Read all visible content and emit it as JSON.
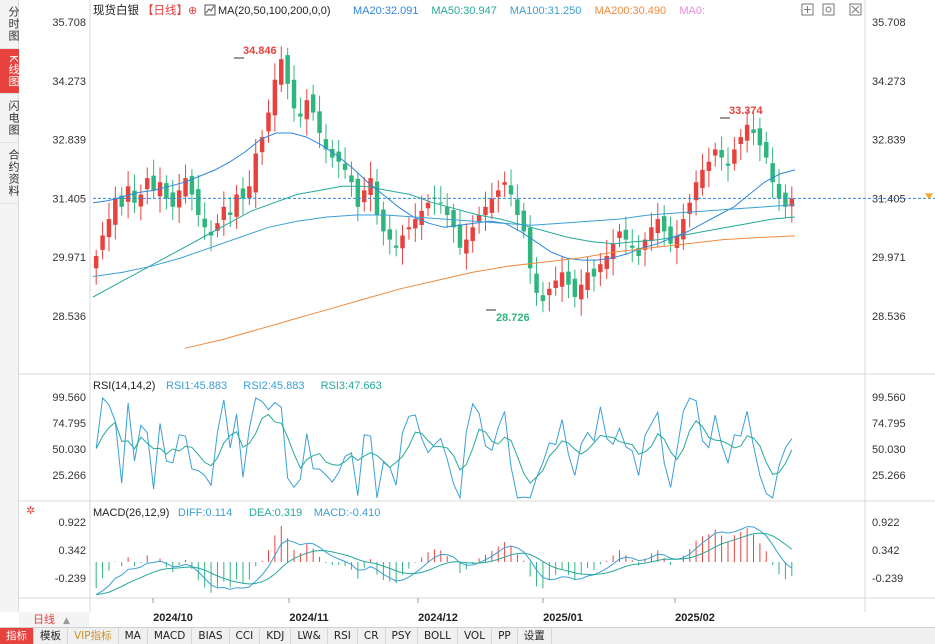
{
  "side_tabs": [
    "分时图",
    "K线图",
    "闪电图",
    "合约资料"
  ],
  "active_side_tab": 1,
  "title": "现货白银",
  "period_label": "【日线】",
  "ma_params": "MA(20,50,100,200,0,0)",
  "ma_legend": [
    {
      "label": "MA20:32.091",
      "color": "#2e86de"
    },
    {
      "label": "MA50:30.947",
      "color": "#26a99a"
    },
    {
      "label": "MA100:31.250",
      "color": "#3aa0d8"
    },
    {
      "label": "MA200:30.490",
      "color": "#f08a3c"
    },
    {
      "label": "MA0:",
      "color": "#e98ad8"
    }
  ],
  "price_axis": {
    "ticks": [
      "35.708",
      "34.273",
      "32.839",
      "31.405",
      "29.971",
      "28.536"
    ]
  },
  "last_price": "31.405",
  "high_label": "34.846",
  "high_label2": "33.374",
  "low_label": "28.726",
  "rsi": {
    "title": "RSI(14,14,2)",
    "legend": [
      {
        "label": "RSI1:45.883",
        "color": "#3aa0d8"
      },
      {
        "label": "RSI2:45.883",
        "color": "#3aa0d8"
      },
      {
        "label": "RSI3:47.663",
        "color": "#26a99a"
      }
    ],
    "ticks": [
      "99.560",
      "74.795",
      "50.030",
      "25.266"
    ]
  },
  "macd": {
    "title": "MACD(26,12,9)",
    "legend": [
      {
        "label": "DIFF:0.114",
        "color": "#3aa0d8"
      },
      {
        "label": "DEA:0.319",
        "color": "#26a99a"
      },
      {
        "label": "MACD:-0.410",
        "color": "#3aa0d8"
      }
    ],
    "ticks": [
      "0.922",
      "0.342",
      "-0.239"
    ]
  },
  "x_axis": [
    "2024/10",
    "2024/11",
    "2024/12",
    "2025/01",
    "2025/02"
  ],
  "period_selector": "日线",
  "bottom_tabs": [
    "指标",
    "模板",
    "VIP指标",
    "MA",
    "MACD",
    "BIAS",
    "CCI",
    "KDJ",
    "LW&",
    "RSI",
    "CR",
    "PSY",
    "BOLL",
    "VOL",
    "PP",
    "设置"
  ],
  "colors": {
    "up": "#e8423f",
    "down": "#2fb57e",
    "ma20": "#2e86de",
    "ma50": "#26a99a",
    "ma100": "#3aa0d8",
    "ma200": "#f08a3c",
    "last_line": "#2e86de",
    "last_marker": "#f5a623"
  },
  "chart_data": {
    "type": "candlestick",
    "y_range": [
      28.536,
      35.708
    ],
    "ohlc_closes": [
      30.0,
      30.5,
      30.9,
      31.4,
      31.2,
      31.7,
      31.3,
      31.5,
      31.9,
      31.6,
      31.8,
      31.4,
      31.2,
      31.6,
      31.9,
      31.5,
      31.0,
      30.7,
      30.5,
      30.8,
      31.2,
      31.0,
      31.5,
      31.4,
      31.7,
      32.5,
      32.9,
      33.5,
      34.3,
      34.8,
      34.2,
      33.6,
      33.4,
      33.8,
      33.5,
      33.0,
      32.6,
      32.4,
      32.3,
      32.1,
      31.8,
      31.2,
      31.6,
      31.9,
      31.0,
      30.6,
      30.4,
      30.2,
      30.5,
      30.7,
      30.9,
      31.1,
      31.3,
      31.4,
      31.3,
      31.0,
      30.7,
      30.2,
      30.4,
      30.7,
      31.0,
      31.2,
      31.4,
      31.6,
      31.8,
      31.5,
      31.0,
      30.6,
      29.7,
      29.1,
      28.9,
      29.2,
      29.4,
      29.6,
      29.3,
      29.0,
      29.3,
      29.6,
      29.5,
      29.8,
      30.0,
      30.3,
      30.6,
      30.4,
      30.2,
      30.0,
      30.4,
      30.7,
      30.9,
      30.6,
      30.3,
      30.5,
      30.9,
      31.3,
      31.8,
      32.1,
      32.3,
      32.6,
      32.4,
      32.2,
      32.6,
      32.9,
      33.2,
      33.0,
      32.7,
      32.4,
      31.8,
      31.4,
      31.2,
      31.4
    ],
    "ma20": [
      31.3,
      31.35,
      31.45,
      31.55,
      31.6,
      31.7,
      31.8,
      31.95,
      32.1,
      32.3,
      32.55,
      32.85,
      33.0,
      33.0,
      32.9,
      32.7,
      32.45,
      32.15,
      31.8,
      31.5,
      31.2,
      30.95,
      30.8,
      30.7,
      30.75,
      30.8,
      30.85,
      30.8,
      30.6,
      30.35,
      30.1,
      29.95,
      29.9,
      29.9,
      29.95,
      30.05,
      30.2,
      30.3,
      30.45,
      30.6,
      30.8,
      31.0,
      31.2,
      31.5,
      31.8,
      32.0,
      32.1
    ],
    "ma50": [
      29.0,
      29.3,
      29.6,
      29.9,
      30.2,
      30.5,
      30.8,
      31.1,
      31.3,
      31.5,
      31.6,
      31.7,
      31.7,
      31.6,
      31.5,
      31.3,
      31.15,
      31.0,
      30.9,
      30.75,
      30.6,
      30.45,
      30.35,
      30.3,
      30.35,
      30.4,
      30.5,
      30.6,
      30.7,
      30.8,
      30.9,
      30.95
    ],
    "ma100": [
      29.5,
      29.6,
      29.75,
      29.95,
      30.2,
      30.45,
      30.7,
      30.85,
      30.95,
      31.0,
      31.0,
      30.95,
      30.9,
      30.85,
      30.8,
      30.75,
      30.8,
      30.85,
      30.9,
      31.0,
      31.05,
      31.1,
      31.15,
      31.2,
      31.25
    ],
    "ma200": [
      27.75,
      27.95,
      28.2,
      28.45,
      28.7,
      28.95,
      29.2,
      29.4,
      29.6,
      29.75,
      29.85,
      29.95,
      30.1,
      30.2,
      30.3,
      30.4,
      30.45,
      30.49
    ]
  }
}
